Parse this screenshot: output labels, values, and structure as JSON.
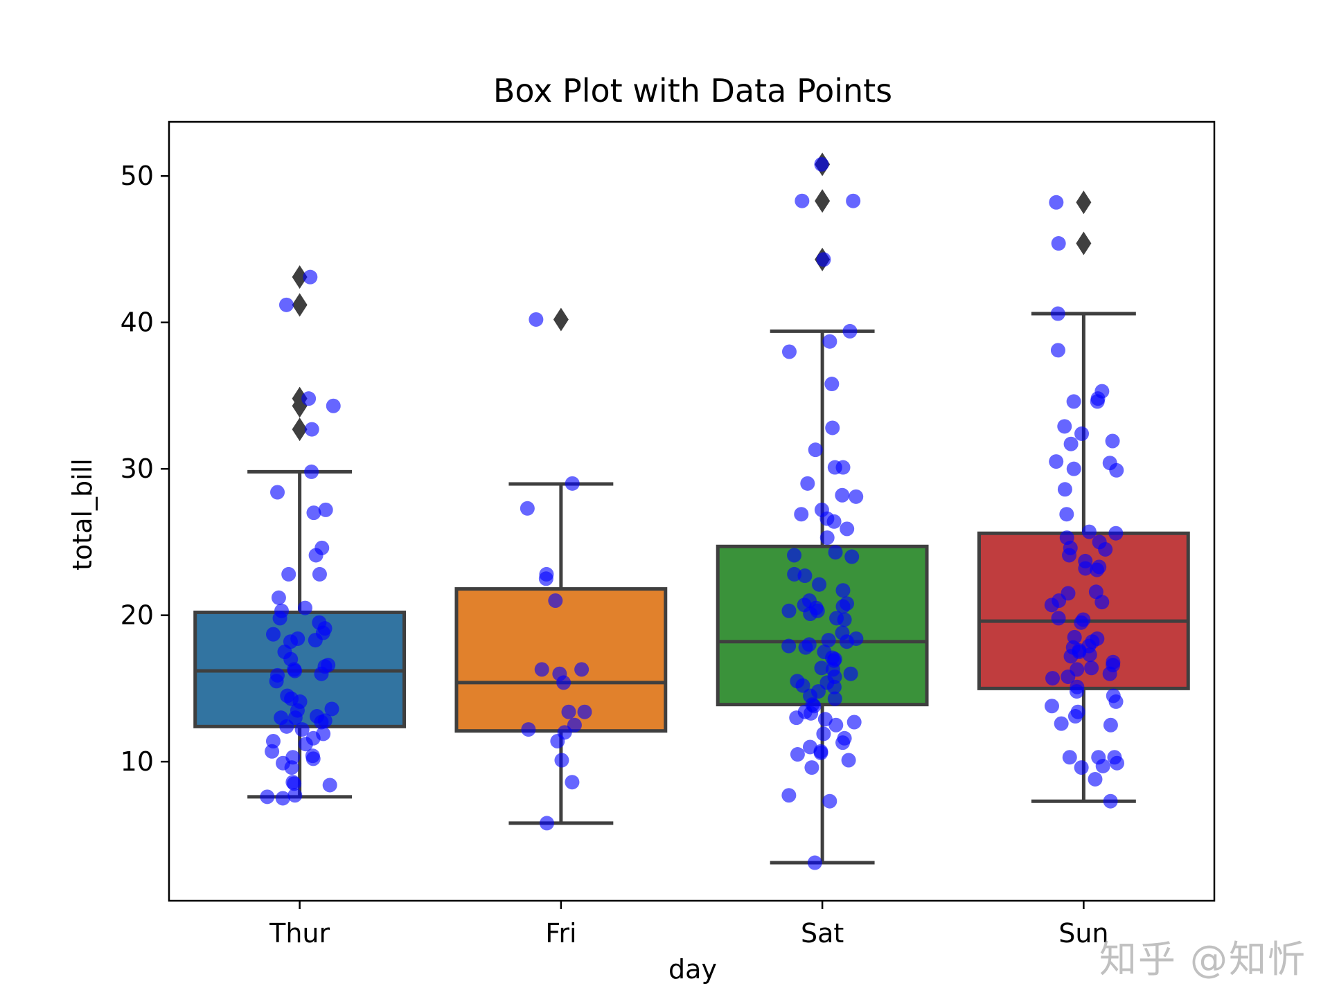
{
  "watermark": "知乎 @知忻",
  "chart_data": {
    "type": "box",
    "title": "Box Plot with Data Points",
    "xlabel": "day",
    "ylabel": "total_bill",
    "categories": [
      "Thur",
      "Fri",
      "Sat",
      "Sun"
    ],
    "ylim": [
      0.5,
      53.7
    ],
    "yticks": [
      10,
      20,
      30,
      40,
      50
    ],
    "grid": false,
    "colors": {
      "boxes": [
        "#3274a1",
        "#e1812c",
        "#3a923a",
        "#c03d3e"
      ],
      "box_edge": "#3f3f3f",
      "points": "#0000ff",
      "outliers": "#3f3f3f"
    },
    "boxes": [
      {
        "name": "Thur",
        "whisker_low": 7.6,
        "q1": 12.4,
        "median": 16.2,
        "q3": 20.2,
        "whisker_high": 29.8,
        "outliers": [
          32.7,
          34.3,
          34.8,
          41.2,
          43.1
        ]
      },
      {
        "name": "Fri",
        "whisker_low": 5.8,
        "q1": 12.1,
        "median": 15.4,
        "q3": 21.8,
        "whisker_high": 28.97,
        "outliers": [
          40.2
        ]
      },
      {
        "name": "Sat",
        "whisker_low": 3.1,
        "q1": 13.9,
        "median": 18.2,
        "q3": 24.7,
        "whisker_high": 39.4,
        "outliers": [
          44.3,
          48.3,
          50.8
        ]
      },
      {
        "name": "Sun",
        "whisker_low": 7.3,
        "q1": 15.0,
        "median": 19.6,
        "q3": 25.6,
        "whisker_high": 40.6,
        "outliers": [
          45.4,
          48.2
        ]
      }
    ],
    "points": [
      {
        "name": "Thur",
        "values": [
          43.1,
          41.2,
          34.8,
          34.3,
          32.7,
          29.8,
          28.4,
          27.2,
          27.0,
          24.6,
          24.1,
          22.8,
          22.8,
          21.2,
          20.5,
          20.3,
          19.8,
          19.5,
          19.1,
          18.8,
          18.7,
          18.4,
          18.3,
          18.2,
          17.5,
          17.0,
          16.6,
          16.5,
          16.3,
          16.2,
          16.0,
          15.9,
          15.5,
          14.5,
          14.3,
          14.1,
          13.6,
          13.5,
          13.1,
          13.0,
          13.0,
          12.8,
          12.7,
          12.4,
          12.2,
          11.9,
          11.6,
          11.4,
          11.2,
          10.7,
          10.4,
          10.3,
          10.2,
          9.9,
          9.6,
          8.6,
          8.5,
          8.4,
          7.7,
          7.6,
          7.5
        ]
      },
      {
        "name": "Fri",
        "values": [
          40.2,
          29.0,
          27.3,
          22.8,
          22.5,
          21.0,
          16.3,
          16.3,
          16.0,
          15.4,
          13.4,
          13.4,
          12.5,
          12.2,
          12.0,
          11.4,
          10.1,
          8.6,
          5.8
        ]
      },
      {
        "name": "Sat",
        "values": [
          50.8,
          48.3,
          48.3,
          44.3,
          39.4,
          38.7,
          38.0,
          35.8,
          32.8,
          31.3,
          30.1,
          30.1,
          29.0,
          28.2,
          28.1,
          27.2,
          26.9,
          26.6,
          26.4,
          25.9,
          25.3,
          24.3,
          24.1,
          24.0,
          22.8,
          22.7,
          22.1,
          21.7,
          21.0,
          20.8,
          20.7,
          20.6,
          20.5,
          20.3,
          20.3,
          20.1,
          19.8,
          19.7,
          18.8,
          18.4,
          18.3,
          18.2,
          18.0,
          17.9,
          17.8,
          17.5,
          17.1,
          17.0,
          16.9,
          16.4,
          16.3,
          16.0,
          15.8,
          15.5,
          15.4,
          15.2,
          15.1,
          14.8,
          14.5,
          14.3,
          13.9,
          13.8,
          13.4,
          13.3,
          13.0,
          12.9,
          12.7,
          12.5,
          11.9,
          11.6,
          11.3,
          11.0,
          10.7,
          10.6,
          10.5,
          10.1,
          9.6,
          7.7,
          7.3,
          3.1
        ]
      },
      {
        "name": "Sun",
        "values": [
          48.2,
          45.4,
          40.6,
          38.1,
          35.3,
          34.8,
          34.6,
          34.6,
          32.9,
          32.4,
          31.9,
          31.7,
          30.5,
          30.4,
          30.0,
          29.9,
          28.6,
          26.9,
          25.7,
          25.6,
          25.3,
          25.0,
          24.6,
          24.5,
          24.1,
          23.7,
          23.3,
          23.2,
          23.1,
          21.6,
          21.5,
          21.0,
          20.9,
          20.7,
          19.8,
          19.7,
          19.5,
          18.5,
          18.4,
          18.2,
          17.9,
          17.8,
          17.6,
          17.5,
          17.3,
          17.2,
          16.8,
          16.6,
          16.4,
          16.3,
          16.0,
          15.8,
          15.7,
          15.1,
          14.8,
          14.5,
          14.1,
          13.8,
          13.4,
          13.1,
          12.6,
          12.5,
          10.3,
          10.3,
          10.3,
          9.9,
          9.7,
          9.6,
          8.8,
          7.3
        ]
      }
    ]
  }
}
